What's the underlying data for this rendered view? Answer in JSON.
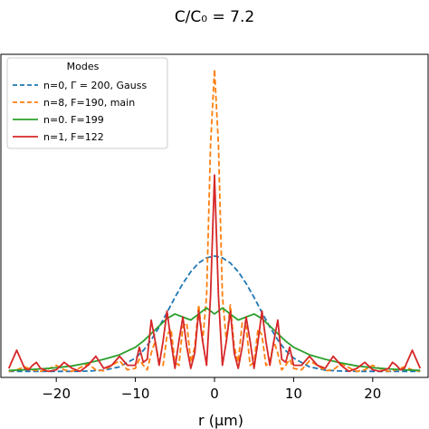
{
  "chart_data": {
    "type": "line",
    "title": "C/C₀ = 7.2",
    "xlabel": "r (μm)",
    "ylabel": "",
    "xlim": [
      -27,
      27
    ],
    "ylim": [
      -0.02,
      1.05
    ],
    "xticks": [
      -20,
      -10,
      0,
      10,
      20
    ],
    "xtick_labels": [
      "−20",
      "−10",
      "0",
      "10",
      "20"
    ],
    "grid": false,
    "legend": {
      "title": "Modes",
      "placement": "upper-left"
    },
    "series": [
      {
        "name": "n=0, Γ = 200, Gauss",
        "color": "#1f77b4",
        "style": "dashed",
        "x": [
          -26,
          -24,
          -22,
          -20,
          -18,
          -16,
          -14,
          -12,
          -10,
          -9,
          -8,
          -7,
          -6,
          -5,
          -4,
          -3,
          -2,
          -1,
          0,
          1,
          2,
          3,
          4,
          5,
          6,
          7,
          8,
          9,
          10,
          12,
          14,
          16,
          18,
          20,
          22,
          24,
          26
        ],
        "y": [
          0.0,
          0.0,
          0.0,
          0.0,
          0.0,
          0.001,
          0.004,
          0.015,
          0.044,
          0.069,
          0.104,
          0.147,
          0.195,
          0.245,
          0.291,
          0.33,
          0.359,
          0.376,
          0.382,
          0.376,
          0.359,
          0.33,
          0.291,
          0.245,
          0.195,
          0.147,
          0.104,
          0.069,
          0.044,
          0.015,
          0.004,
          0.001,
          0.0,
          0.0,
          0.0,
          0.0,
          0.0
        ]
      },
      {
        "name": "n=8, F=190, main",
        "color": "#ff7f0e",
        "style": "dashed",
        "x": [
          -26,
          -25,
          -24,
          -23,
          -22,
          -21,
          -20,
          -19,
          -18,
          -17,
          -16,
          -15,
          -14,
          -13,
          -12,
          -11,
          -10,
          -9.5,
          -9,
          -8.5,
          -8,
          -7.5,
          -7,
          -6.5,
          -6,
          -5.5,
          -5,
          -4.5,
          -4,
          -3.5,
          -3,
          -2.5,
          -2,
          -1.5,
          -1,
          -0.5,
          0,
          0.5,
          1,
          1.5,
          2,
          2.5,
          3,
          3.5,
          4,
          4.5,
          5,
          5.5,
          6,
          6.5,
          7,
          7.5,
          8,
          8.5,
          9,
          9.5,
          10,
          11,
          12,
          13,
          14,
          15,
          16,
          17,
          18,
          19,
          20,
          21,
          22,
          23,
          24,
          25,
          26
        ],
        "y": [
          0.0,
          0.005,
          0.015,
          0.005,
          0.0,
          0.008,
          0.02,
          0.005,
          0.0,
          0.012,
          0.025,
          0.005,
          0.002,
          0.02,
          0.035,
          0.005,
          0.01,
          0.04,
          0.02,
          0.005,
          0.06,
          0.1,
          0.03,
          0.02,
          0.12,
          0.14,
          0.03,
          0.02,
          0.15,
          0.16,
          0.03,
          0.08,
          0.22,
          0.1,
          0.25,
          0.75,
          1.0,
          0.75,
          0.25,
          0.1,
          0.22,
          0.08,
          0.03,
          0.16,
          0.15,
          0.02,
          0.03,
          0.14,
          0.12,
          0.02,
          0.03,
          0.1,
          0.06,
          0.005,
          0.02,
          0.04,
          0.01,
          0.005,
          0.035,
          0.02,
          0.002,
          0.005,
          0.025,
          0.012,
          0.0,
          0.005,
          0.02,
          0.008,
          0.0,
          0.005,
          0.015,
          0.005,
          0.0
        ]
      },
      {
        "name": "n=0. F=199",
        "color": "#2ca02c",
        "style": "solid",
        "x": [
          -26,
          -24,
          -22,
          -20,
          -18,
          -16,
          -14,
          -12,
          -10,
          -9,
          -8,
          -7,
          -6,
          -5,
          -4,
          -3,
          -2,
          -1,
          0,
          1,
          2,
          3,
          4,
          5,
          6,
          7,
          8,
          9,
          10,
          12,
          14,
          16,
          18,
          20,
          22,
          24,
          26
        ],
        "y": [
          0.003,
          0.005,
          0.008,
          0.012,
          0.018,
          0.028,
          0.04,
          0.055,
          0.08,
          0.1,
          0.125,
          0.15,
          0.175,
          0.19,
          0.18,
          0.17,
          0.19,
          0.21,
          0.19,
          0.21,
          0.19,
          0.17,
          0.18,
          0.19,
          0.175,
          0.15,
          0.125,
          0.1,
          0.08,
          0.055,
          0.04,
          0.028,
          0.018,
          0.012,
          0.008,
          0.005,
          0.003
        ]
      },
      {
        "name": "n=1, F=122",
        "color": "#d62728",
        "style": "solid",
        "x": [
          -26,
          -25.5,
          -25,
          -24.5,
          -24,
          -23.5,
          -23,
          -22.5,
          -22,
          -21,
          -20,
          -19,
          -18,
          -17,
          -16,
          -15,
          -14,
          -13,
          -12,
          -11,
          -10,
          -9.5,
          -9,
          -8.5,
          -8,
          -7.5,
          -7,
          -6.5,
          -6,
          -5.5,
          -5,
          -4.5,
          -4,
          -3.5,
          -3,
          -2.5,
          -2,
          -1.5,
          -1,
          -0.5,
          0,
          0.5,
          1,
          1.5,
          2,
          2.5,
          3,
          3.5,
          4,
          4.5,
          5,
          5.5,
          6,
          6.5,
          7,
          7.5,
          8,
          8.5,
          9,
          9.5,
          10,
          11,
          12,
          13,
          14,
          15,
          16,
          17,
          18,
          19,
          20,
          21,
          22,
          22.5,
          23,
          23.5,
          24,
          24.5,
          25,
          25.5,
          26
        ],
        "y": [
          0.01,
          0.04,
          0.07,
          0.04,
          0.01,
          0.005,
          0.02,
          0.03,
          0.01,
          0.0,
          0.005,
          0.03,
          0.01,
          0.0,
          0.02,
          0.05,
          0.01,
          0.02,
          0.05,
          0.02,
          0.02,
          0.08,
          0.03,
          0.04,
          0.17,
          0.1,
          0.02,
          0.1,
          0.2,
          0.1,
          0.01,
          0.1,
          0.18,
          0.08,
          0.01,
          0.06,
          0.2,
          0.1,
          0.02,
          0.25,
          0.65,
          0.25,
          0.02,
          0.1,
          0.2,
          0.06,
          0.01,
          0.08,
          0.18,
          0.1,
          0.01,
          0.1,
          0.2,
          0.1,
          0.02,
          0.1,
          0.17,
          0.04,
          0.03,
          0.08,
          0.02,
          0.02,
          0.05,
          0.02,
          0.01,
          0.05,
          0.02,
          0.0,
          0.01,
          0.03,
          0.005,
          0.0,
          0.01,
          0.03,
          0.02,
          0.005,
          0.01,
          0.04,
          0.07,
          0.04,
          0.01
        ]
      }
    ]
  }
}
